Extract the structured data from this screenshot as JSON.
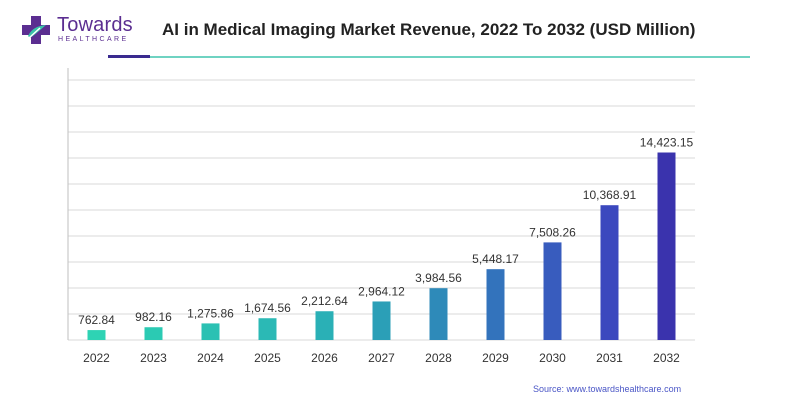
{
  "brand": {
    "name": "Towards",
    "sub": "HEALTHCARE",
    "colors": {
      "purple": "#5b2e91",
      "teal": "#39c3a8"
    }
  },
  "source": "Source: www.towardshealthcare.com",
  "chart_data": {
    "type": "bar",
    "title": "AI in Medical Imaging Market Revenue, 2022 To 2032 (USD Million)",
    "xlabel": "",
    "ylabel": "",
    "categories": [
      "2022",
      "2023",
      "2024",
      "2025",
      "2026",
      "2027",
      "2028",
      "2029",
      "2030",
      "2031",
      "2032"
    ],
    "values": [
      762.84,
      982.16,
      1275.86,
      1674.56,
      2212.64,
      2964.12,
      3984.56,
      5448.17,
      7508.26,
      10368.91,
      14423.15
    ],
    "labels": [
      "762.84",
      "982.16",
      "1,275.86",
      "1,674.56",
      "2,212.64",
      "2,964.12",
      "3,984.56",
      "5,448.17",
      "7,508.26",
      "10,368.91",
      "14,423.15"
    ],
    "ylim": [
      0,
      20000
    ],
    "yticks": [
      0,
      2000,
      4000,
      6000,
      8000,
      10000,
      12000,
      14000,
      16000,
      18000,
      20000
    ],
    "grid": true,
    "legend": "none",
    "colors": [
      "#2ed3b4",
      "#2bcab3",
      "#2bc1b3",
      "#2bb9b5",
      "#2ab0b6",
      "#2b9fb7",
      "#2e8ab9",
      "#3373bc",
      "#385cbe",
      "#3b48be",
      "#3a33ad"
    ]
  }
}
